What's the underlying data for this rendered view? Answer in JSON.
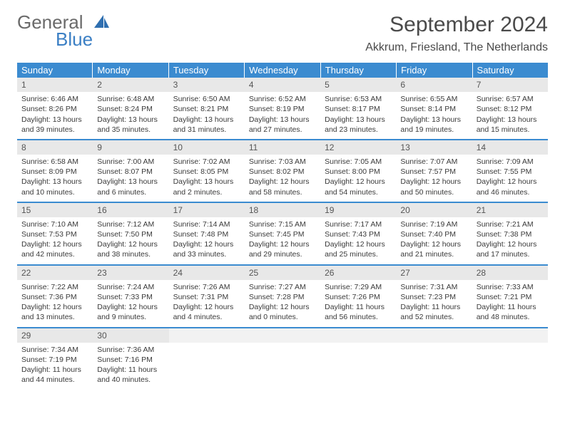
{
  "logo": {
    "general": "General",
    "blue": "Blue"
  },
  "title": "September 2024",
  "location": "Akkrum, Friesland, The Netherlands",
  "colors": {
    "header_bg": "#3b8bd0",
    "row_divider": "#3b8bd0",
    "daynum_bg": "#e8e8e8",
    "text": "#3a3a3a"
  },
  "daynames": [
    "Sunday",
    "Monday",
    "Tuesday",
    "Wednesday",
    "Thursday",
    "Friday",
    "Saturday"
  ],
  "weeks": [
    [
      {
        "n": "1",
        "sr": "Sunrise: 6:46 AM",
        "ss": "Sunset: 8:26 PM",
        "dl": "Daylight: 13 hours and 39 minutes."
      },
      {
        "n": "2",
        "sr": "Sunrise: 6:48 AM",
        "ss": "Sunset: 8:24 PM",
        "dl": "Daylight: 13 hours and 35 minutes."
      },
      {
        "n": "3",
        "sr": "Sunrise: 6:50 AM",
        "ss": "Sunset: 8:21 PM",
        "dl": "Daylight: 13 hours and 31 minutes."
      },
      {
        "n": "4",
        "sr": "Sunrise: 6:52 AM",
        "ss": "Sunset: 8:19 PM",
        "dl": "Daylight: 13 hours and 27 minutes."
      },
      {
        "n": "5",
        "sr": "Sunrise: 6:53 AM",
        "ss": "Sunset: 8:17 PM",
        "dl": "Daylight: 13 hours and 23 minutes."
      },
      {
        "n": "6",
        "sr": "Sunrise: 6:55 AM",
        "ss": "Sunset: 8:14 PM",
        "dl": "Daylight: 13 hours and 19 minutes."
      },
      {
        "n": "7",
        "sr": "Sunrise: 6:57 AM",
        "ss": "Sunset: 8:12 PM",
        "dl": "Daylight: 13 hours and 15 minutes."
      }
    ],
    [
      {
        "n": "8",
        "sr": "Sunrise: 6:58 AM",
        "ss": "Sunset: 8:09 PM",
        "dl": "Daylight: 13 hours and 10 minutes."
      },
      {
        "n": "9",
        "sr": "Sunrise: 7:00 AM",
        "ss": "Sunset: 8:07 PM",
        "dl": "Daylight: 13 hours and 6 minutes."
      },
      {
        "n": "10",
        "sr": "Sunrise: 7:02 AM",
        "ss": "Sunset: 8:05 PM",
        "dl": "Daylight: 13 hours and 2 minutes."
      },
      {
        "n": "11",
        "sr": "Sunrise: 7:03 AM",
        "ss": "Sunset: 8:02 PM",
        "dl": "Daylight: 12 hours and 58 minutes."
      },
      {
        "n": "12",
        "sr": "Sunrise: 7:05 AM",
        "ss": "Sunset: 8:00 PM",
        "dl": "Daylight: 12 hours and 54 minutes."
      },
      {
        "n": "13",
        "sr": "Sunrise: 7:07 AM",
        "ss": "Sunset: 7:57 PM",
        "dl": "Daylight: 12 hours and 50 minutes."
      },
      {
        "n": "14",
        "sr": "Sunrise: 7:09 AM",
        "ss": "Sunset: 7:55 PM",
        "dl": "Daylight: 12 hours and 46 minutes."
      }
    ],
    [
      {
        "n": "15",
        "sr": "Sunrise: 7:10 AM",
        "ss": "Sunset: 7:53 PM",
        "dl": "Daylight: 12 hours and 42 minutes."
      },
      {
        "n": "16",
        "sr": "Sunrise: 7:12 AM",
        "ss": "Sunset: 7:50 PM",
        "dl": "Daylight: 12 hours and 38 minutes."
      },
      {
        "n": "17",
        "sr": "Sunrise: 7:14 AM",
        "ss": "Sunset: 7:48 PM",
        "dl": "Daylight: 12 hours and 33 minutes."
      },
      {
        "n": "18",
        "sr": "Sunrise: 7:15 AM",
        "ss": "Sunset: 7:45 PM",
        "dl": "Daylight: 12 hours and 29 minutes."
      },
      {
        "n": "19",
        "sr": "Sunrise: 7:17 AM",
        "ss": "Sunset: 7:43 PM",
        "dl": "Daylight: 12 hours and 25 minutes."
      },
      {
        "n": "20",
        "sr": "Sunrise: 7:19 AM",
        "ss": "Sunset: 7:40 PM",
        "dl": "Daylight: 12 hours and 21 minutes."
      },
      {
        "n": "21",
        "sr": "Sunrise: 7:21 AM",
        "ss": "Sunset: 7:38 PM",
        "dl": "Daylight: 12 hours and 17 minutes."
      }
    ],
    [
      {
        "n": "22",
        "sr": "Sunrise: 7:22 AM",
        "ss": "Sunset: 7:36 PM",
        "dl": "Daylight: 12 hours and 13 minutes."
      },
      {
        "n": "23",
        "sr": "Sunrise: 7:24 AM",
        "ss": "Sunset: 7:33 PM",
        "dl": "Daylight: 12 hours and 9 minutes."
      },
      {
        "n": "24",
        "sr": "Sunrise: 7:26 AM",
        "ss": "Sunset: 7:31 PM",
        "dl": "Daylight: 12 hours and 4 minutes."
      },
      {
        "n": "25",
        "sr": "Sunrise: 7:27 AM",
        "ss": "Sunset: 7:28 PM",
        "dl": "Daylight: 12 hours and 0 minutes."
      },
      {
        "n": "26",
        "sr": "Sunrise: 7:29 AM",
        "ss": "Sunset: 7:26 PM",
        "dl": "Daylight: 11 hours and 56 minutes."
      },
      {
        "n": "27",
        "sr": "Sunrise: 7:31 AM",
        "ss": "Sunset: 7:23 PM",
        "dl": "Daylight: 11 hours and 52 minutes."
      },
      {
        "n": "28",
        "sr": "Sunrise: 7:33 AM",
        "ss": "Sunset: 7:21 PM",
        "dl": "Daylight: 11 hours and 48 minutes."
      }
    ],
    [
      {
        "n": "29",
        "sr": "Sunrise: 7:34 AM",
        "ss": "Sunset: 7:19 PM",
        "dl": "Daylight: 11 hours and 44 minutes."
      },
      {
        "n": "30",
        "sr": "Sunrise: 7:36 AM",
        "ss": "Sunset: 7:16 PM",
        "dl": "Daylight: 11 hours and 40 minutes."
      },
      {
        "empty": true
      },
      {
        "empty": true
      },
      {
        "empty": true
      },
      {
        "empty": true
      },
      {
        "empty": true
      }
    ]
  ]
}
